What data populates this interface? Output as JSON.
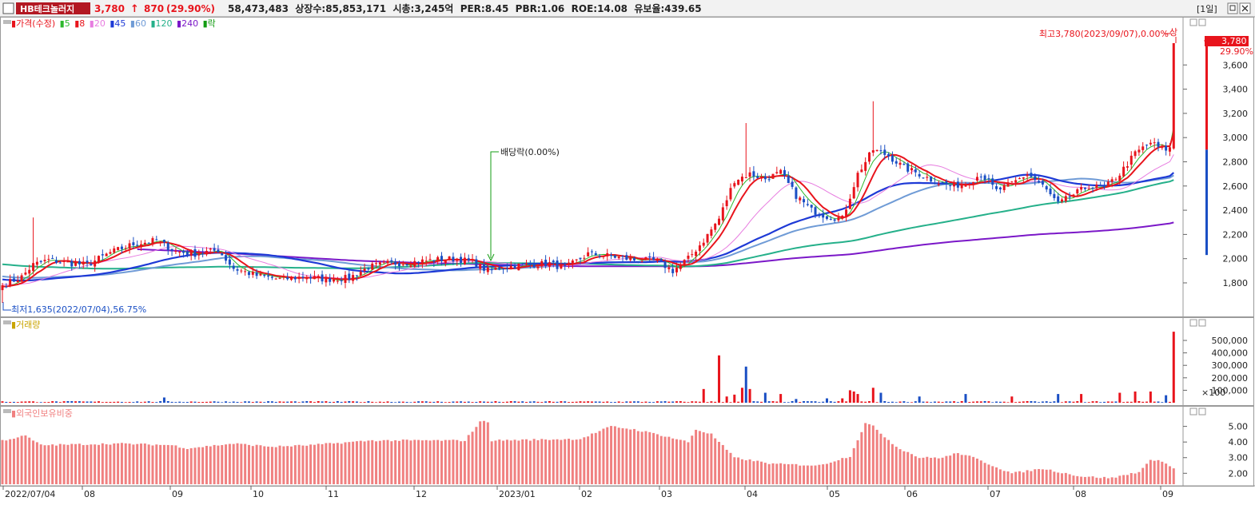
{
  "header": {
    "stock_name": "HB테크놀러지",
    "price": "3,780",
    "arrow": "↑",
    "change": "870",
    "change_pct": "(29.90%)",
    "info": "58,473,483  상장수:85,853,171  시총:3,245억  PER:8.45  PBR:1.06  ROE:14.08  유보율:439.65",
    "period_button": "[1일]",
    "close_icon": "close-icon"
  },
  "price_panel": {
    "legend": [
      {
        "text": "가격(수정)",
        "color": "#e8141c"
      },
      {
        "text": "5",
        "color": "#2db82d"
      },
      {
        "text": "8",
        "color": "#e8141c"
      },
      {
        "text": "20",
        "color": "#e77ce0"
      },
      {
        "text": "45",
        "color": "#1e3ad6"
      },
      {
        "text": "60",
        "color": "#6f9bd6"
      },
      {
        "text": "120",
        "color": "#25b08a"
      },
      {
        "text": "240",
        "color": "#7b18c8"
      },
      {
        "text": "락",
        "color": "#139c13"
      }
    ],
    "high_annotation": "최고3,780(2023/09/07),0.00%",
    "high_marker": "상",
    "low_annotation": "최저1,635(2022/07/04),56.75%",
    "dividend_annotation": "배당락(0.00%)",
    "current_price_label": "3,780",
    "current_pct_label": "29.90%"
  },
  "volume_panel": {
    "legend": "거래량",
    "unit_label": "×100"
  },
  "foreign_panel": {
    "legend": "외국인보유비중"
  },
  "colors": {
    "up": "#e8141c",
    "down": "#1a4fc4",
    "foreign_bar": "#f08080"
  },
  "chart_data": [
    {
      "type": "candlestick",
      "title": "가격(수정)",
      "ylim": [
        1600,
        3800
      ],
      "y_ticks": [
        "1,800",
        "2,000",
        "2,200",
        "2,400",
        "2,600",
        "2,800",
        "3,000",
        "3,200",
        "3,400",
        "3,600"
      ],
      "x_ticks": [
        "2022/07/04",
        "08",
        "09",
        "10",
        "11",
        "12",
        "2023/01",
        "02",
        "03",
        "04",
        "05",
        "06",
        "07",
        "08",
        "09"
      ],
      "close_anchors": [
        [
          0,
          1780
        ],
        [
          5,
          1850
        ],
        [
          8,
          1950
        ],
        [
          12,
          1990
        ],
        [
          18,
          1960
        ],
        [
          22,
          1950
        ],
        [
          28,
          2050
        ],
        [
          34,
          2120
        ],
        [
          40,
          2150
        ],
        [
          45,
          2060
        ],
        [
          50,
          2040
        ],
        [
          56,
          2070
        ],
        [
          60,
          1920
        ],
        [
          66,
          1860
        ],
        [
          72,
          1830
        ],
        [
          78,
          1850
        ],
        [
          84,
          1830
        ],
        [
          90,
          1840
        ],
        [
          95,
          1930
        ],
        [
          100,
          1960
        ],
        [
          106,
          1970
        ],
        [
          112,
          1990
        ],
        [
          118,
          2000
        ],
        [
          122,
          1970
        ],
        [
          126,
          1900
        ],
        [
          130,
          1930
        ],
        [
          136,
          1950
        ],
        [
          142,
          1960
        ],
        [
          146,
          1920
        ],
        [
          152,
          2040
        ],
        [
          158,
          2020
        ],
        [
          164,
          1990
        ],
        [
          170,
          1980
        ],
        [
          174,
          1900
        ],
        [
          178,
          2000
        ],
        [
          182,
          2150
        ],
        [
          186,
          2330
        ],
        [
          190,
          2650
        ],
        [
          194,
          2700
        ],
        [
          198,
          2660
        ],
        [
          202,
          2710
        ],
        [
          206,
          2520
        ],
        [
          210,
          2400
        ],
        [
          214,
          2350
        ],
        [
          218,
          2330
        ],
        [
          222,
          2700
        ],
        [
          226,
          2900
        ],
        [
          230,
          2850
        ],
        [
          234,
          2750
        ],
        [
          238,
          2700
        ],
        [
          242,
          2640
        ],
        [
          246,
          2600
        ],
        [
          250,
          2620
        ],
        [
          254,
          2700
        ],
        [
          258,
          2560
        ],
        [
          262,
          2620
        ],
        [
          266,
          2700
        ],
        [
          270,
          2600
        ],
        [
          274,
          2450
        ],
        [
          278,
          2530
        ],
        [
          282,
          2600
        ],
        [
          286,
          2580
        ],
        [
          290,
          2700
        ],
        [
          294,
          2870
        ],
        [
          298,
          2960
        ],
        [
          301,
          2900
        ],
        [
          303,
          2910
        ],
        [
          304,
          3780
        ]
      ],
      "high": {
        "value": 3780,
        "date": "2023/09/07"
      },
      "low": {
        "value": 1635,
        "date": "2022/07/04"
      },
      "moving_averages": [
        "5",
        "8",
        "20",
        "45",
        "60",
        "120",
        "240"
      ]
    },
    {
      "type": "bar",
      "title": "거래량",
      "ylim": [
        0,
        600000
      ],
      "y_ticks": [
        "100,000",
        "200,000",
        "300,000",
        "400,000",
        "500,000"
      ],
      "spikes": [
        [
          182,
          110000
        ],
        [
          186,
          380000
        ],
        [
          188,
          50000
        ],
        [
          190,
          65000
        ],
        [
          192,
          120000
        ],
        [
          193,
          290000
        ],
        [
          194,
          110000
        ],
        [
          198,
          80000
        ],
        [
          202,
          70000
        ],
        [
          206,
          30000
        ],
        [
          214,
          35000
        ],
        [
          218,
          35000
        ],
        [
          220,
          100000
        ],
        [
          221,
          90000
        ],
        [
          222,
          70000
        ],
        [
          226,
          120000
        ],
        [
          228,
          80000
        ],
        [
          238,
          50000
        ],
        [
          250,
          70000
        ],
        [
          262,
          50000
        ],
        [
          274,
          70000
        ],
        [
          280,
          70000
        ],
        [
          290,
          80000
        ],
        [
          294,
          90000
        ],
        [
          298,
          90000
        ],
        [
          302,
          60000
        ],
        [
          304,
          570000
        ]
      ]
    },
    {
      "type": "bar",
      "title": "외국인보유비중",
      "ylim": [
        1.3,
        5.9
      ],
      "y_ticks": [
        "2.00",
        "3.00",
        "4.00",
        "5.00"
      ],
      "anchors": [
        [
          0,
          4.1
        ],
        [
          6,
          4.4
        ],
        [
          10,
          3.8
        ],
        [
          30,
          3.9
        ],
        [
          44,
          3.8
        ],
        [
          48,
          3.6
        ],
        [
          60,
          3.9
        ],
        [
          70,
          3.7
        ],
        [
          80,
          3.8
        ],
        [
          96,
          4.1
        ],
        [
          120,
          4.1
        ],
        [
          124,
          5.3
        ],
        [
          126,
          5.3
        ],
        [
          127,
          4.1
        ],
        [
          150,
          4.2
        ],
        [
          158,
          5.0
        ],
        [
          164,
          4.8
        ],
        [
          170,
          4.5
        ],
        [
          178,
          4.0
        ],
        [
          180,
          4.8
        ],
        [
          184,
          4.5
        ],
        [
          190,
          3.0
        ],
        [
          200,
          2.6
        ],
        [
          212,
          2.5
        ],
        [
          220,
          3.1
        ],
        [
          224,
          5.2
        ],
        [
          226,
          5.0
        ],
        [
          232,
          3.7
        ],
        [
          238,
          3.0
        ],
        [
          244,
          3.0
        ],
        [
          248,
          3.3
        ],
        [
          252,
          3.0
        ],
        [
          256,
          2.6
        ],
        [
          262,
          2.0
        ],
        [
          270,
          2.3
        ],
        [
          280,
          1.8
        ],
        [
          288,
          1.7
        ],
        [
          295,
          2.1
        ],
        [
          298,
          2.8
        ],
        [
          300,
          2.9
        ],
        [
          304,
          2.3
        ]
      ]
    }
  ]
}
